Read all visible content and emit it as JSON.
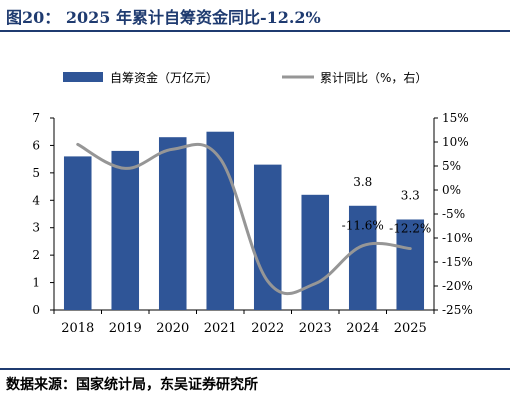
{
  "title": "图20：  2025 年累计自筹资金同比-12.2%",
  "source": "数据来源：国家统计局，东吴证券研究所",
  "chart_data": {
    "type": "bar",
    "categories": [
      "2018",
      "2019",
      "2020",
      "2021",
      "2022",
      "2023",
      "2024",
      "2025"
    ],
    "series": [
      {
        "name": "自筹资金（万亿元）",
        "type": "bar",
        "axis": "left",
        "values": [
          5.6,
          5.8,
          6.3,
          6.5,
          5.3,
          4.2,
          3.8,
          3.3
        ],
        "color": "#2f5597"
      },
      {
        "name": "累计同比（%，右）",
        "type": "line",
        "axis": "right",
        "values": [
          9.5,
          4.5,
          8.5,
          6.5,
          -19.0,
          -19.5,
          -11.6,
          -12.2
        ],
        "color": "#969696"
      }
    ],
    "data_labels": [
      {
        "category": "2024",
        "series": 0,
        "text": "3.8"
      },
      {
        "category": "2025",
        "series": 0,
        "text": "3.3"
      },
      {
        "category": "2024",
        "series": 1,
        "text": "-11.6%"
      },
      {
        "category": "2025",
        "series": 1,
        "text": "-12.2%"
      }
    ],
    "y_left": {
      "min": 0,
      "max": 7,
      "ticks": [
        "0",
        "1",
        "2",
        "3",
        "4",
        "5",
        "6",
        "7"
      ]
    },
    "y_right": {
      "min": -25,
      "max": 15,
      "ticks": [
        "-25%",
        "-20%",
        "-15%",
        "-10%",
        "-5%",
        "0%",
        "5%",
        "10%",
        "15%"
      ]
    },
    "legend_position": "top",
    "grid": false
  }
}
